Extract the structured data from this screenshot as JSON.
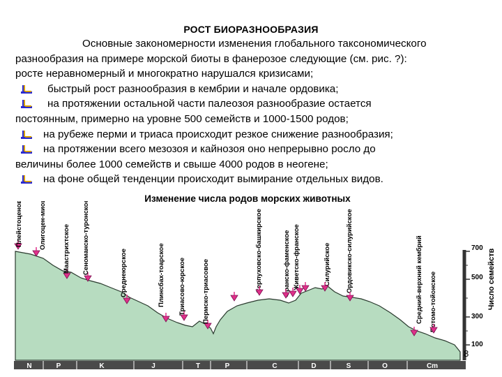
{
  "title": "РОСТ БИОРАЗНООБРАЗИЯ",
  "intro": "Основные закономерности изменения глобального таксономического разнообразия на примере морской биоты в фанерозое следующие (см. рис. ?): росте неравномерный и многократно нарушался кризисами;",
  "intro_line1": "Основные закономерности изменения глобального таксономического",
  "intro_line2": "разнообразия на примере морской биоты в фанерозое следующие (см. рис. ?):",
  "intro_line3": "росте неравномерный и многократно нарушался кризисами;",
  "bullets": [
    {
      "line1": "быстрый рост разнообразия в кембрии и начале ордовика;"
    },
    {
      "line1": "на протяжении остальной части палеозоя разнообразие остается",
      "line2": "постоянным, примерно на уровне 500 семейств и 1000-1500 родов;"
    },
    {
      "line1": "на рубеже перми и триаса происходит резкое снижение разнообразия;"
    },
    {
      "line1": "на протяжении всего мезозоя и кайнозоя оно непрерывно росло до",
      "line2": "величины более 1000 семейств и свыше 4000 родов в неогене;"
    },
    {
      "line1": "на фоне общей тенденции происходит вымирание отдельных видов."
    }
  ],
  "figure": {
    "caption": "Изменение числа родов морских животных",
    "y_axis_label": "Число семейств",
    "y_ticks": [
      "100",
      "300",
      "500",
      "700"
    ],
    "periods": [
      "N",
      "P",
      "K",
      "J",
      "T",
      "P",
      "C",
      "D",
      "S",
      "O",
      "Cm"
    ],
    "events": [
      "Плейстоценово-голоценовое",
      "Олигоцен-миоценовое",
      "Маастрихтское",
      "Сеноманско-туронское",
      "Среднеюрское",
      "Плинсбах-тоарское",
      "Триасово-юрское",
      "Пермско-триасовое",
      "Серпуховско-башкирское",
      "Франско-фаменское",
      "Живетско-франское",
      "Силурийское",
      "Ордовикско-силурийское",
      "Средний-верхний кембрий",
      "Ботомо-тойонское"
    ],
    "colors": {
      "area": "#b7dcc0",
      "area_stroke": "#2a3a2e",
      "marker": "#e0308a",
      "axis": "#333333",
      "bar": "#4a4a4a"
    }
  },
  "page_number": "8"
}
